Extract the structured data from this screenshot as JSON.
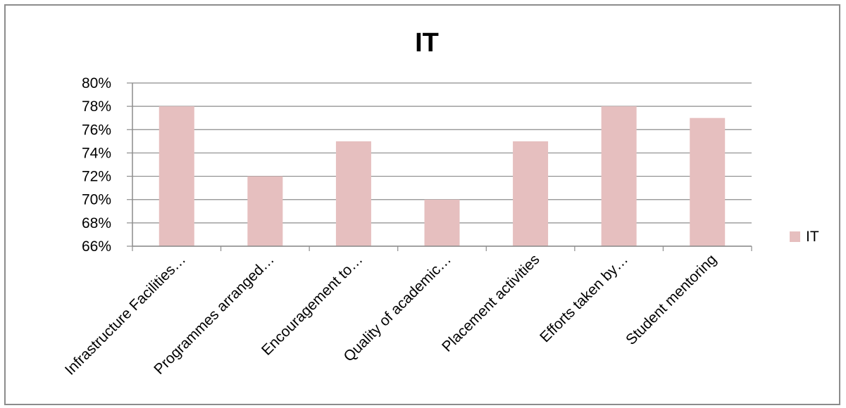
{
  "chart_data": {
    "type": "bar",
    "title": "IT",
    "xlabel": "",
    "ylabel": "",
    "categories": [
      "Infrastructure Facilities…",
      "Programmes arranged…",
      "Encouragement to…",
      "Quality of academic…",
      "Placement activities",
      "Efforts taken by…",
      "Student mentoring"
    ],
    "series": [
      {
        "name": "IT",
        "values": [
          0.78,
          0.72,
          0.75,
          0.7,
          0.75,
          0.78,
          0.77
        ]
      }
    ],
    "ylim": [
      0.66,
      0.8
    ],
    "yticks": [
      0.66,
      0.68,
      0.7,
      0.72,
      0.74,
      0.76,
      0.78,
      0.8
    ],
    "ytick_labels": [
      "66%",
      "68%",
      "70%",
      "72%",
      "74%",
      "76%",
      "78%",
      "80%"
    ],
    "grid": true,
    "legend_position": "right",
    "colors": {
      "bar": "#e6bfbf",
      "grid": "#8c8c8c",
      "axis": "#8c8c8c"
    }
  }
}
